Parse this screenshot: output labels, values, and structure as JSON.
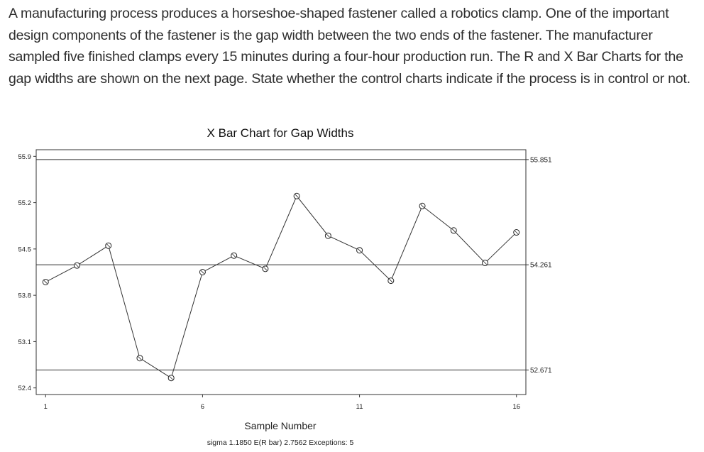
{
  "question": {
    "text": "A manufacturing process produces a horseshoe-shaped fastener called a robotics clamp. One of the important design components of the fastener is the gap width between the two ends of the fastener.  The manufacturer sampled five finished clamps every 15 minutes during a four-hour production run.  The R and X Bar Charts for the gap widths are shown on the next page. State whether the control charts indicate if the process is in control or not."
  },
  "chart_data": {
    "type": "line",
    "title": "X Bar Chart for Gap Widths",
    "xlabel": "Sample Number",
    "ylabel": "",
    "footer": "sigma 1.1850  E(R bar) 2.7562  Exceptions: 5",
    "x_ticks": [
      1,
      6,
      11,
      16
    ],
    "y_ticks": [
      "52.4",
      "53.1",
      "53.8",
      "54.5",
      "55.2",
      "55.9"
    ],
    "y_tick_values": [
      52.4,
      53.1,
      53.8,
      54.5,
      55.2,
      55.9
    ],
    "xlim": [
      0.7,
      16.3
    ],
    "ylim": [
      52.3,
      56.0
    ],
    "x": [
      1,
      2,
      3,
      4,
      5,
      6,
      7,
      8,
      9,
      10,
      11,
      12,
      13,
      14,
      15,
      16
    ],
    "values": [
      54.0,
      54.25,
      54.55,
      52.85,
      52.55,
      54.15,
      54.4,
      54.2,
      55.3,
      54.7,
      54.48,
      54.02,
      55.15,
      54.78,
      54.29,
      54.75
    ],
    "reference_lines": [
      {
        "name": "UCL",
        "value": 55.851,
        "label": "55.851"
      },
      {
        "name": "CL",
        "value": 54.261,
        "label": "54.261"
      },
      {
        "name": "LCL",
        "value": 52.671,
        "label": "52.671"
      }
    ],
    "grid": false,
    "line_color": "#333333",
    "marker": "open-circle"
  }
}
